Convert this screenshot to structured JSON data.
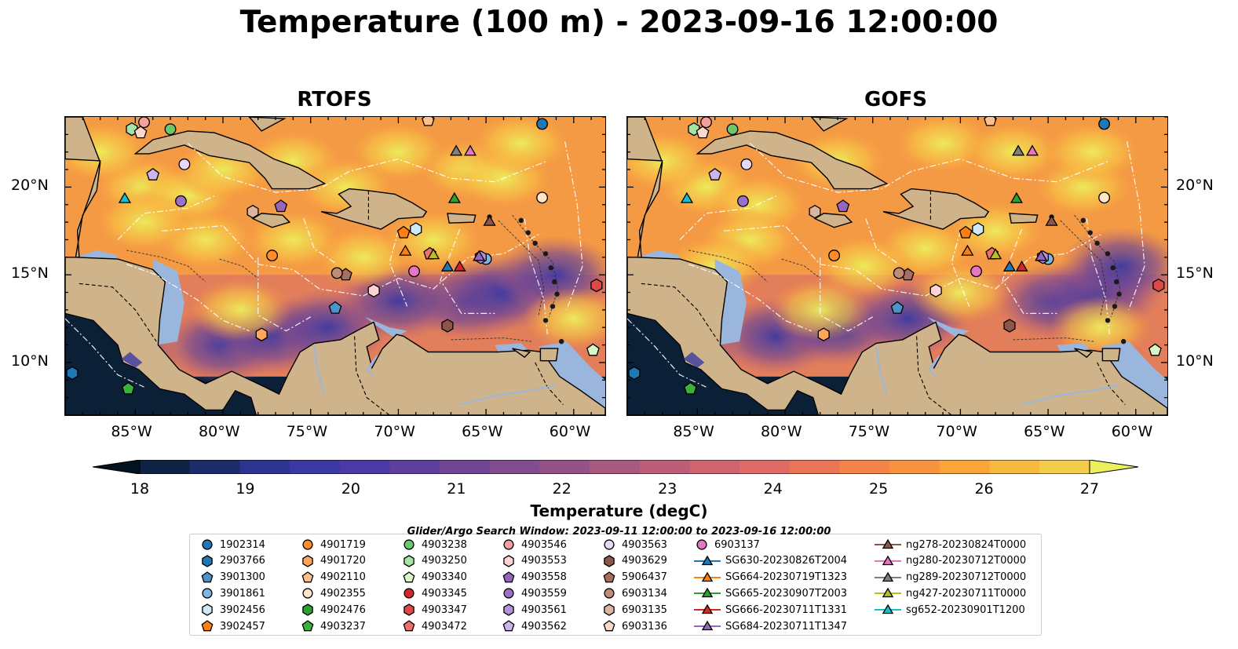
{
  "title": "Temperature (100 m) - 2023-09-16 12:00:00",
  "panels": [
    {
      "title": "RTOFS"
    },
    {
      "title": "GOFS"
    }
  ],
  "lat_labels": [
    "20°N",
    "15°N",
    "10°N"
  ],
  "lon_labels": [
    "85°W",
    "80°W",
    "75°W",
    "70°W",
    "65°W",
    "60°W"
  ],
  "map_extent": {
    "lon": [
      -89,
      -58.2
    ],
    "lat": [
      7,
      24
    ]
  },
  "colorbar": {
    "label": "Temperature (degC)",
    "ticks": [
      "18",
      "19",
      "20",
      "21",
      "22",
      "23",
      "24",
      "25",
      "26",
      "27"
    ],
    "range": [
      18,
      27
    ],
    "colors": [
      "#03121f",
      "#0e2344",
      "#1c2c6a",
      "#2c3391",
      "#3a38a3",
      "#4b3aa5",
      "#5e3f9d",
      "#704694",
      "#834c8e",
      "#955287",
      "#a8597f",
      "#bb5e77",
      "#cf6470",
      "#e06a66",
      "#ec7557",
      "#f38349",
      "#f7933e",
      "#f9a53a",
      "#f8b93f",
      "#f2cd4b",
      "#ecef5c"
    ]
  },
  "search_window": "Glider/Argo Search Window: 2023-09-11 12:00:00 to 2023-09-16 12:00:00",
  "legend": [
    {
      "label": "1902314",
      "marker": "circle",
      "color": "#1f77b4"
    },
    {
      "label": "2903766",
      "marker": "hexagon",
      "color": "#1f77b4"
    },
    {
      "label": "3901300",
      "marker": "pentagon",
      "color": "#4c94c8"
    },
    {
      "label": "3901861",
      "marker": "circle",
      "color": "#7fb6e0"
    },
    {
      "label": "3902456",
      "marker": "hexagon",
      "color": "#cfe8f8"
    },
    {
      "label": "3902457",
      "marker": "pentagon",
      "color": "#ff7f0e"
    },
    {
      "label": "4901719",
      "marker": "circle",
      "color": "#ff8c2b"
    },
    {
      "label": "4901720",
      "marker": "hexagon",
      "color": "#ffa65c"
    },
    {
      "label": "4902110",
      "marker": "pentagon",
      "color": "#ffc08c"
    },
    {
      "label": "4902355",
      "marker": "circle",
      "color": "#ffe4c8"
    },
    {
      "label": "4902476",
      "marker": "hexagon",
      "color": "#2ca02c"
    },
    {
      "label": "4903237",
      "marker": "pentagon",
      "color": "#3cb13c"
    },
    {
      "label": "4903238",
      "marker": "circle",
      "color": "#6cc86c"
    },
    {
      "label": "4903250",
      "marker": "hexagon",
      "color": "#a6e3a6"
    },
    {
      "label": "4903340",
      "marker": "pentagon",
      "color": "#d8f6c8"
    },
    {
      "label": "4903345",
      "marker": "circle",
      "color": "#d62728"
    },
    {
      "label": "4903347",
      "marker": "hexagon",
      "color": "#e04848"
    },
    {
      "label": "4903472",
      "marker": "pentagon",
      "color": "#ec7070"
    },
    {
      "label": "4903546",
      "marker": "circle",
      "color": "#f4a0a0"
    },
    {
      "label": "4903553",
      "marker": "hexagon",
      "color": "#fcd4d4"
    },
    {
      "label": "4903558",
      "marker": "pentagon",
      "color": "#9467bd"
    },
    {
      "label": "4903559",
      "marker": "circle",
      "color": "#9c70c8"
    },
    {
      "label": "4903561",
      "marker": "hexagon",
      "color": "#b492dc"
    },
    {
      "label": "4903562",
      "marker": "pentagon",
      "color": "#ceb4ec"
    },
    {
      "label": "4903563",
      "marker": "circle",
      "color": "#e8d8f8"
    },
    {
      "label": "4903629",
      "marker": "hexagon",
      "color": "#8c564b"
    },
    {
      "label": "5906437",
      "marker": "pentagon",
      "color": "#a86e60"
    },
    {
      "label": "6903134",
      "marker": "circle",
      "color": "#c08c7a"
    },
    {
      "label": "6903135",
      "marker": "hexagon",
      "color": "#dcb4a0"
    },
    {
      "label": "6903136",
      "marker": "pentagon",
      "color": "#fcd8cc"
    },
    {
      "label": "6903137",
      "marker": "circle",
      "color": "#e377c2"
    },
    {
      "label": "SG630-20230826T2004",
      "marker": "triangle",
      "color": "#1f77b4"
    },
    {
      "label": "SG664-20230719T1323",
      "marker": "triangle",
      "color": "#ff7f0e"
    },
    {
      "label": "SG665-20230907T2003",
      "marker": "triangle",
      "color": "#2ca02c"
    },
    {
      "label": "SG666-20230711T1331",
      "marker": "triangle",
      "color": "#d62728"
    },
    {
      "label": "SG684-20230711T1347",
      "marker": "triangle",
      "color": "#9467bd"
    },
    {
      "label": "ng278-20230824T0000",
      "marker": "triangle",
      "color": "#8c564b"
    },
    {
      "label": "ng280-20230712T0000",
      "marker": "triangle",
      "color": "#e377c2"
    },
    {
      "label": "ng289-20230712T0000",
      "marker": "triangle",
      "color": "#7f7f7f"
    },
    {
      "label": "ng427-20230711T0000",
      "marker": "triangle",
      "color": "#bcbd22"
    },
    {
      "label": "sg652-20230901T1200",
      "marker": "triangle",
      "color": "#17becf"
    }
  ],
  "observations": [
    {
      "id": "1902314",
      "lon": -61.8,
      "lat": 23.6
    },
    {
      "id": "3901300",
      "lon": -73.6,
      "lat": 13.1
    },
    {
      "id": "3901861",
      "lon": -65.0,
      "lat": 15.9
    },
    {
      "id": "3902456",
      "lon": -69.0,
      "lat": 17.6
    },
    {
      "id": "3902457",
      "lon": -69.7,
      "lat": 17.4
    },
    {
      "id": "4901719",
      "lon": -77.2,
      "lat": 16.1
    },
    {
      "id": "4901720",
      "lon": -77.8,
      "lat": 11.6
    },
    {
      "id": "4902110",
      "lon": -68.3,
      "lat": 23.8
    },
    {
      "id": "4902355",
      "lon": -61.8,
      "lat": 19.4
    },
    {
      "id": "4903237",
      "lon": -85.4,
      "lat": 8.5
    },
    {
      "id": "4903238",
      "lon": -83.0,
      "lat": 23.3
    },
    {
      "id": "4903250",
      "lon": -85.2,
      "lat": 23.3
    },
    {
      "id": "4903340",
      "lon": -58.9,
      "lat": 10.7
    },
    {
      "id": "4903347",
      "lon": -58.7,
      "lat": 14.4
    },
    {
      "id": "4903546",
      "lon": -84.5,
      "lat": 23.7
    },
    {
      "id": "4903553",
      "lon": -71.4,
      "lat": 14.1
    },
    {
      "id": "4903558",
      "lon": -76.7,
      "lat": 18.9
    },
    {
      "id": "4903559",
      "lon": -82.4,
      "lat": 19.2
    },
    {
      "id": "4903561",
      "lon": -65.3,
      "lat": 16.0
    },
    {
      "id": "4903562",
      "lon": -84.0,
      "lat": 20.7
    },
    {
      "id": "4903563",
      "lon": -82.2,
      "lat": 21.3
    },
    {
      "id": "4903629",
      "lon": -67.2,
      "lat": 12.1
    },
    {
      "id": "5906437",
      "lon": -73.0,
      "lat": 15.0
    },
    {
      "id": "6903134",
      "lon": -73.5,
      "lat": 15.1
    },
    {
      "id": "6903135",
      "lon": -78.3,
      "lat": 18.6
    },
    {
      "id": "6903136",
      "lon": -84.7,
      "lat": 23.1
    },
    {
      "id": "6903137",
      "lon": -69.1,
      "lat": 15.2
    },
    {
      "id": "2903766",
      "lon": -88.6,
      "lat": 9.4
    },
    {
      "id": "4903472",
      "lon": -68.2,
      "lat": 16.2
    },
    {
      "id": "SG630-20230826T2004",
      "lon": -67.2,
      "lat": 15.4
    },
    {
      "id": "SG664-20230719T1323",
      "lon": -69.6,
      "lat": 16.3
    },
    {
      "id": "SG665-20230907T2003",
      "lon": -66.8,
      "lat": 19.3
    },
    {
      "id": "SG666-20230711T1331",
      "lon": -66.5,
      "lat": 15.4
    },
    {
      "id": "SG684-20230711T1347",
      "lon": -65.4,
      "lat": 16.0
    },
    {
      "id": "ng278-20230824T0000",
      "lon": -64.8,
      "lat": 18.0
    },
    {
      "id": "ng280-20230712T0000",
      "lon": -65.9,
      "lat": 22.0
    },
    {
      "id": "ng289-20230712T0000",
      "lon": -66.7,
      "lat": 22.0
    },
    {
      "id": "ng427-20230711T0000",
      "lon": -68.0,
      "lat": 16.1
    },
    {
      "id": "sg652-20230901T1200",
      "lon": -85.6,
      "lat": 19.3
    }
  ]
}
